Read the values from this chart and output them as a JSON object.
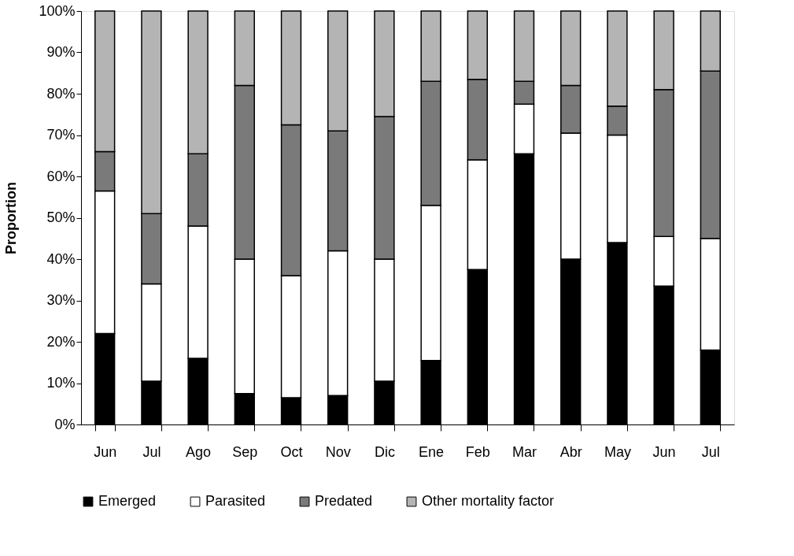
{
  "chart_data": {
    "type": "bar",
    "stacked": true,
    "ylabel": "Proportion",
    "categories": [
      "Jun",
      "Jul",
      "Ago",
      "Sep",
      "Oct",
      "Nov",
      "Dic",
      "Ene",
      "Feb",
      "Mar",
      "Abr",
      "May",
      "Jun",
      "Jul"
    ],
    "series": [
      {
        "name": "Emerged",
        "color": "#000000",
        "values": [
          22,
          10.5,
          16,
          7.5,
          6.5,
          7,
          10.5,
          15.5,
          37.5,
          65.5,
          40,
          44,
          33.5,
          18
        ]
      },
      {
        "name": "Parasited",
        "color": "#ffffff",
        "values": [
          34.5,
          23.5,
          32,
          32.5,
          29.5,
          35,
          29.5,
          37.5,
          26.5,
          12,
          30.5,
          26,
          12,
          27
        ]
      },
      {
        "name": "Predated",
        "color": "#7a7a7a",
        "values": [
          9.5,
          17,
          17.5,
          42,
          36.5,
          29,
          34.5,
          30,
          19.5,
          5.5,
          11.5,
          7,
          35.5,
          40.5
        ]
      },
      {
        "name": "Other mortality factor",
        "color": "#b4b4b4",
        "values": [
          34,
          49,
          34.5,
          18,
          27.5,
          29,
          25.5,
          17,
          16.5,
          17,
          18,
          23,
          19,
          14.5
        ]
      }
    ],
    "ylim": [
      0,
      100
    ],
    "yticks": [
      {
        "value": 0,
        "label": "0%"
      },
      {
        "value": 10,
        "label": "10%"
      },
      {
        "value": 20,
        "label": "20%"
      },
      {
        "value": 30,
        "label": "30%"
      },
      {
        "value": 40,
        "label": "40%"
      },
      {
        "value": 50,
        "label": "50%"
      },
      {
        "value": 60,
        "label": "60%"
      },
      {
        "value": 70,
        "label": "70%"
      },
      {
        "value": 80,
        "label": "80%"
      },
      {
        "value": 90,
        "label": "90%"
      },
      {
        "value": 100,
        "label": "100%"
      }
    ],
    "grid": false,
    "legend": "bottom"
  }
}
